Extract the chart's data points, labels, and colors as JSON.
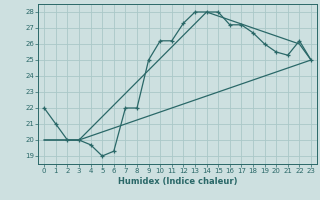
{
  "xlabel": "Humidex (Indice chaleur)",
  "background_color": "#cde0e0",
  "grid_color": "#aac8c8",
  "line_color": "#2a6868",
  "xlim": [
    -0.5,
    23.5
  ],
  "ylim": [
    18.5,
    28.5
  ],
  "xticks": [
    0,
    1,
    2,
    3,
    4,
    5,
    6,
    7,
    8,
    9,
    10,
    11,
    12,
    13,
    14,
    15,
    16,
    17,
    18,
    19,
    20,
    21,
    22,
    23
  ],
  "yticks": [
    19,
    20,
    21,
    22,
    23,
    24,
    25,
    26,
    27,
    28
  ],
  "line1_x": [
    0,
    1,
    2,
    3,
    4,
    5,
    6,
    7,
    8,
    9,
    10,
    11,
    12,
    13,
    14,
    15,
    16,
    17,
    18,
    19,
    20,
    21,
    22,
    23
  ],
  "line1_y": [
    22,
    21,
    20,
    20,
    19.7,
    19,
    19.3,
    22,
    22,
    25,
    26.2,
    26.2,
    27.3,
    28,
    28,
    28,
    27.2,
    27.2,
    26.7,
    26,
    25.5,
    25.3,
    26.2,
    25
  ],
  "line2_x": [
    0,
    3,
    23
  ],
  "line2_y": [
    20,
    20,
    25
  ],
  "line3_x": [
    0,
    3,
    14,
    22,
    23
  ],
  "line3_y": [
    20,
    20,
    28,
    26,
    25
  ],
  "marker_x": [
    0,
    1,
    2,
    3,
    4,
    5,
    6,
    7,
    8,
    9,
    10,
    11,
    12,
    13,
    14,
    15,
    16,
    17,
    18,
    19,
    20,
    21,
    22,
    23
  ],
  "marker_y": [
    22,
    21,
    20,
    20,
    19.7,
    19,
    19.3,
    22,
    22,
    25,
    26.2,
    26.2,
    27.3,
    28,
    28,
    28,
    27.2,
    27.2,
    26.7,
    26,
    25.5,
    25.3,
    26.2,
    25
  ]
}
